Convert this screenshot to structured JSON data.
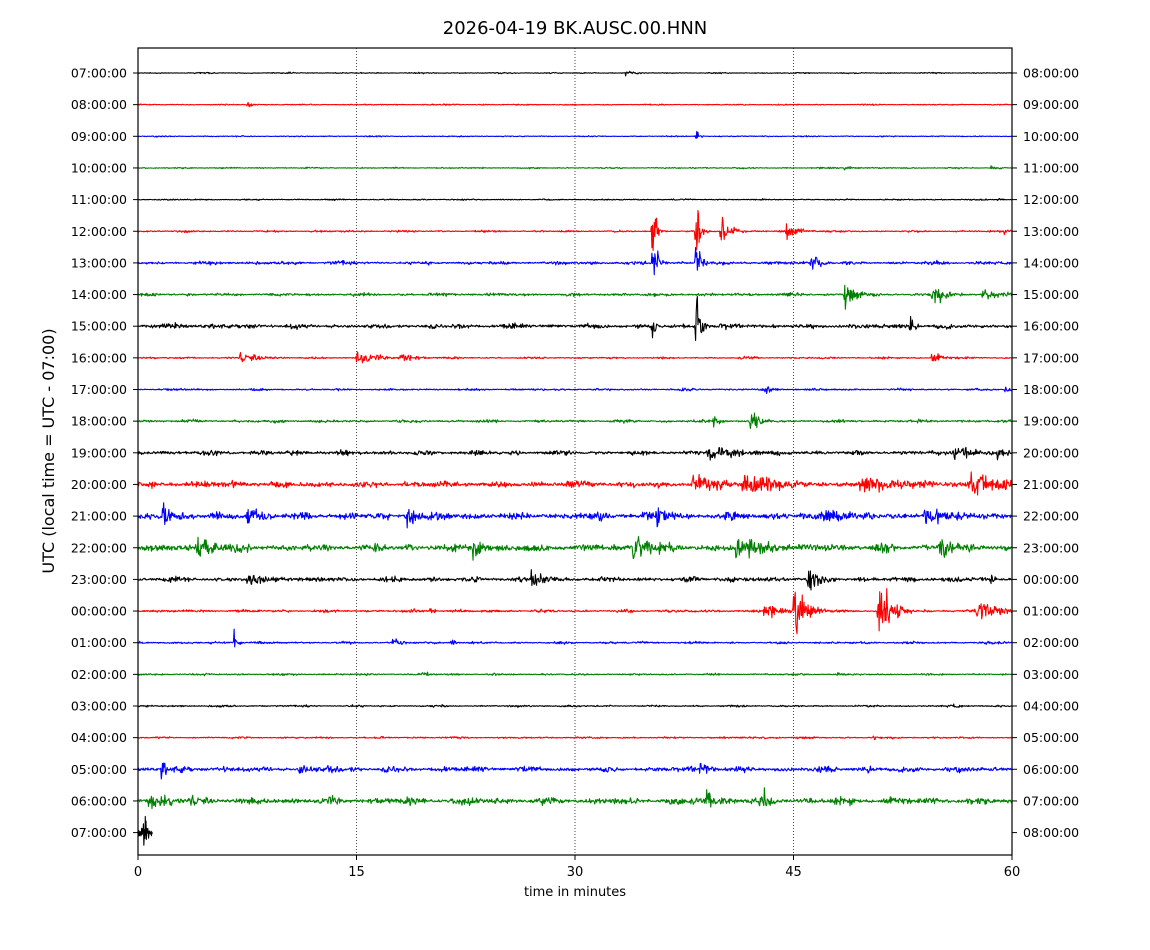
{
  "chart_data": {
    "type": "line",
    "title": "2026-04-19 BK.AUSC.00.HNN",
    "xlabel": "time in minutes",
    "ylabel": "UTC (local time = UTC - 07:00)",
    "xlim": [
      0,
      60
    ],
    "xticks": [
      "0",
      "15",
      "30",
      "45",
      "60"
    ],
    "grid": "vertical dotted lines at 15, 30, 45 minutes",
    "trace_colors": [
      "#000000",
      "#ff0000",
      "#0000ff",
      "#008000"
    ],
    "rows": [
      {
        "left": "07:00:00",
        "right": "08:00:00"
      },
      {
        "left": "08:00:00",
        "right": "09:00:00"
      },
      {
        "left": "09:00:00",
        "right": "10:00:00"
      },
      {
        "left": "10:00:00",
        "right": "11:00:00"
      },
      {
        "left": "11:00:00",
        "right": "12:00:00"
      },
      {
        "left": "12:00:00",
        "right": "13:00:00"
      },
      {
        "left": "13:00:00",
        "right": "14:00:00"
      },
      {
        "left": "14:00:00",
        "right": "15:00:00"
      },
      {
        "left": "15:00:00",
        "right": "16:00:00"
      },
      {
        "left": "16:00:00",
        "right": "17:00:00"
      },
      {
        "left": "17:00:00",
        "right": "18:00:00"
      },
      {
        "left": "18:00:00",
        "right": "19:00:00"
      },
      {
        "left": "19:00:00",
        "right": "20:00:00"
      },
      {
        "left": "20:00:00",
        "right": "21:00:00"
      },
      {
        "left": "21:00:00",
        "right": "22:00:00"
      },
      {
        "left": "22:00:00",
        "right": "23:00:00"
      },
      {
        "left": "23:00:00",
        "right": "00:00:00"
      },
      {
        "left": "00:00:00",
        "right": "01:00:00"
      },
      {
        "left": "01:00:00",
        "right": "02:00:00"
      },
      {
        "left": "02:00:00",
        "right": "03:00:00"
      },
      {
        "left": "03:00:00",
        "right": "04:00:00"
      },
      {
        "left": "04:00:00",
        "right": "05:00:00"
      },
      {
        "left": "05:00:00",
        "right": "06:00:00"
      },
      {
        "left": "06:00:00",
        "right": "07:00:00"
      },
      {
        "left": "07:00:00",
        "right": "08:00:00"
      }
    ],
    "traces": [
      {
        "noise": 0.5,
        "events": [
          [
            33.5,
            2.5,
            0.5
          ]
        ]
      },
      {
        "noise": 0.5,
        "events": [
          [
            7.5,
            3,
            0.3
          ],
          [
            21,
            1.5,
            0.6
          ]
        ]
      },
      {
        "noise": 0.5,
        "events": [
          [
            38.3,
            7,
            0.2
          ]
        ]
      },
      {
        "noise": 0.6,
        "events": [
          [
            48.5,
            1.5,
            0.8
          ],
          [
            58.5,
            1.2,
            1
          ]
        ]
      },
      {
        "noise": 0.6,
        "events": [
          [
            59,
            1.5,
            0.4
          ]
        ]
      },
      {
        "noise": 0.8,
        "events": [
          [
            35.3,
            26,
            0.25
          ],
          [
            38.3,
            30,
            0.25
          ],
          [
            40,
            12,
            0.6
          ],
          [
            44.5,
            8,
            0.7
          ],
          [
            59.5,
            4,
            0.3
          ]
        ]
      },
      {
        "noise": 1.4,
        "events": [
          [
            35.3,
            16,
            0.4
          ],
          [
            38.3,
            22,
            0.3
          ],
          [
            46.2,
            8,
            0.6
          ],
          [
            14,
            2,
            1.2
          ]
        ]
      },
      {
        "noise": 1.3,
        "events": [
          [
            48.5,
            9,
            0.8
          ],
          [
            54.5,
            9,
            0.8
          ],
          [
            58,
            4,
            1.5
          ]
        ]
      },
      {
        "noise": 2,
        "events": [
          [
            35.3,
            12,
            0.2
          ],
          [
            38.3,
            30,
            0.3
          ],
          [
            53,
            6,
            0.4
          ],
          [
            2.5,
            3,
            1
          ]
        ]
      },
      {
        "noise": 0.8,
        "events": [
          [
            7,
            4,
            1.5
          ],
          [
            15,
            5,
            1.5
          ],
          [
            18,
            4,
            1
          ],
          [
            54.5,
            4,
            0.8
          ]
        ]
      },
      {
        "noise": 0.9,
        "events": [
          [
            43,
            4,
            0.6
          ],
          [
            59.5,
            2,
            0.6
          ]
        ]
      },
      {
        "noise": 1.2,
        "events": [
          [
            42,
            9,
            0.7
          ],
          [
            39.5,
            4,
            0.5
          ]
        ]
      },
      {
        "noise": 2,
        "events": [
          [
            39,
            5,
            3
          ],
          [
            56,
            6,
            1.5
          ],
          [
            59,
            4,
            1
          ]
        ]
      },
      {
        "noise": 2.8,
        "events": [
          [
            38,
            7,
            2.5
          ],
          [
            41.5,
            8,
            3
          ],
          [
            49.5,
            7,
            3
          ],
          [
            57,
            8,
            3
          ]
        ]
      },
      {
        "noise": 3.2,
        "events": [
          [
            1.5,
            8,
            1.5
          ],
          [
            7.5,
            8,
            1.2
          ],
          [
            18.5,
            10,
            0.6
          ],
          [
            35.5,
            8,
            1.2
          ],
          [
            47,
            5,
            3
          ],
          [
            54,
            6,
            3
          ]
        ]
      },
      {
        "noise": 3.2,
        "events": [
          [
            4,
            8,
            1.5
          ],
          [
            23,
            10,
            0.6
          ],
          [
            34,
            14,
            1.5
          ],
          [
            41,
            8,
            3
          ],
          [
            55,
            8,
            1.5
          ]
        ]
      },
      {
        "noise": 2.2,
        "events": [
          [
            7.5,
            5,
            2
          ],
          [
            27,
            6,
            1.5
          ],
          [
            46,
            12,
            0.8
          ],
          [
            58.5,
            5,
            0.4
          ]
        ]
      },
      {
        "noise": 1.2,
        "events": [
          [
            20,
            4,
            0.3
          ],
          [
            43,
            6,
            1
          ],
          [
            45,
            22,
            0.8
          ],
          [
            50.8,
            24,
            0.8
          ],
          [
            57.5,
            8,
            1.5
          ]
        ]
      },
      {
        "noise": 1,
        "events": [
          [
            6.6,
            7,
            0.3
          ],
          [
            17.5,
            3,
            0.6
          ],
          [
            21.5,
            3,
            0.3
          ]
        ]
      },
      {
        "noise": 0.8,
        "events": [
          [
            19.5,
            3,
            0.4
          ],
          [
            48,
            1.5,
            1
          ]
        ]
      },
      {
        "noise": 0.8,
        "events": [
          [
            56,
            1.2,
            1
          ]
        ]
      },
      {
        "noise": 0.8,
        "events": [
          [
            43,
            1.2,
            1
          ],
          [
            50.5,
            3,
            0.2
          ]
        ]
      },
      {
        "noise": 2.3,
        "events": [
          [
            1.6,
            8,
            0.4
          ],
          [
            11,
            4,
            1.2
          ],
          [
            13,
            5,
            1
          ],
          [
            38.5,
            4,
            1.2
          ],
          [
            50,
            3,
            1
          ]
        ]
      },
      {
        "noise": 3,
        "events": [
          [
            0.7,
            6,
            2
          ],
          [
            3.5,
            5,
            1.5
          ],
          [
            22,
            5,
            1.5
          ],
          [
            39,
            6,
            1.5
          ],
          [
            43,
            9,
            0.4
          ]
        ]
      },
      {
        "noise": 3.5,
        "events": [
          [
            0.4,
            12,
            0.3
          ]
        ],
        "end_minute": 1
      }
    ]
  }
}
